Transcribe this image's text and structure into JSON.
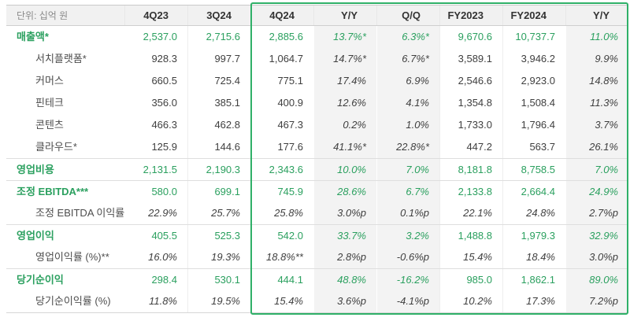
{
  "colors": {
    "green_text": "#2ba05f",
    "green_border": "#2fb068",
    "shade_bg": "#f3f3f3",
    "header_bg": "#f1f1f1"
  },
  "chart_data": {
    "type": "table",
    "unit_label": "단위: 십억 원",
    "columns": [
      "4Q23",
      "3Q24",
      "4Q24",
      "Y/Y",
      "Q/Q",
      "FY2023",
      "FY2024",
      "Y/Y"
    ],
    "highlighted_columns": [
      "4Q24",
      "Y/Y",
      "Q/Q",
      "FY2023",
      "FY2024",
      "Y/Y"
    ],
    "rows": [
      {
        "label": "매출액*",
        "type": "section",
        "divider": false,
        "ratio": false,
        "values": [
          "2,537.0",
          "2,715.6",
          "2,885.6",
          "13.7%*",
          "6.3%*",
          "9,670.6",
          "10,737.7",
          "11.0%"
        ]
      },
      {
        "label": "서치플랫폼*",
        "type": "sub",
        "divider": false,
        "ratio": false,
        "values": [
          "928.3",
          "997.7",
          "1,064.7",
          "14.7%*",
          "6.7%*",
          "3,589.1",
          "3,946.2",
          "9.9%"
        ]
      },
      {
        "label": "커머스",
        "type": "sub",
        "divider": false,
        "ratio": false,
        "values": [
          "660.5",
          "725.4",
          "775.1",
          "17.4%",
          "6.9%",
          "2,546.6",
          "2,923.0",
          "14.8%"
        ]
      },
      {
        "label": "핀테크",
        "type": "sub",
        "divider": false,
        "ratio": false,
        "values": [
          "356.0",
          "385.1",
          "400.9",
          "12.6%",
          "4.1%",
          "1,354.8",
          "1,508.4",
          "11.3%"
        ]
      },
      {
        "label": "콘텐츠",
        "type": "sub",
        "divider": false,
        "ratio": false,
        "values": [
          "466.3",
          "462.8",
          "467.3",
          "0.2%",
          "1.0%",
          "1,733.0",
          "1,796.4",
          "3.7%"
        ]
      },
      {
        "label": "클라우드*",
        "type": "sub",
        "divider": false,
        "ratio": false,
        "values": [
          "125.9",
          "144.6",
          "177.6",
          "41.1%*",
          "22.8%*",
          "447.2",
          "563.7",
          "26.1%"
        ]
      },
      {
        "label": "영업비용",
        "type": "section",
        "divider": true,
        "ratio": false,
        "values": [
          "2,131.5",
          "2,190.3",
          "2,343.6",
          "10.0%",
          "7.0%",
          "8,181.8",
          "8,758.5",
          "7.0%"
        ]
      },
      {
        "label": "조정 EBITDA***",
        "type": "section",
        "divider": true,
        "ratio": false,
        "values": [
          "580.0",
          "699.1",
          "745.9",
          "28.6%",
          "6.7%",
          "2,133.8",
          "2,664.4",
          "24.9%"
        ]
      },
      {
        "label": "조정 EBITDA 이익률 (%)",
        "type": "sub",
        "divider": false,
        "ratio": true,
        "values": [
          "22.9%",
          "25.7%",
          "25.8%",
          "3.0%p",
          "0.1%p",
          "22.1%",
          "24.8%",
          "2.7%p"
        ]
      },
      {
        "label": "영업이익",
        "type": "section",
        "divider": true,
        "ratio": false,
        "values": [
          "405.5",
          "525.3",
          "542.0",
          "33.7%",
          "3.2%",
          "1,488.8",
          "1,979.3",
          "32.9%"
        ]
      },
      {
        "label": "영업이익률 (%)**",
        "type": "sub",
        "divider": false,
        "ratio": true,
        "values": [
          "16.0%",
          "19.3%",
          "18.8%**",
          "2.8%p",
          "-0.6%p",
          "15.4%",
          "18.4%",
          "3.0%p"
        ]
      },
      {
        "label": "당기순이익",
        "type": "section",
        "divider": true,
        "ratio": false,
        "values": [
          "298.4",
          "530.1",
          "444.1",
          "48.8%",
          "-16.2%",
          "985.0",
          "1,862.1",
          "89.0%"
        ]
      },
      {
        "label": "당기순이익률 (%)",
        "type": "sub",
        "divider": false,
        "ratio": true,
        "values": [
          "11.8%",
          "19.5%",
          "15.4%",
          "3.6%p",
          "-4.1%p",
          "10.2%",
          "17.3%",
          "7.2%p"
        ]
      }
    ]
  }
}
